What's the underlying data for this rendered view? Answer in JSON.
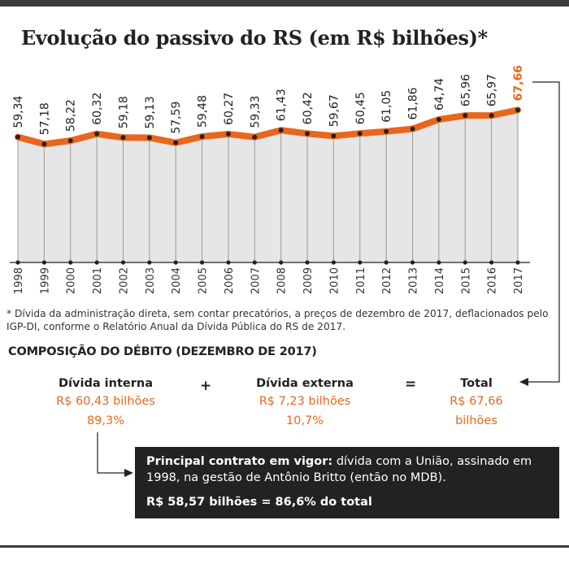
{
  "title": "Evolução do passivo do RS (em R$ bilhões)*",
  "chart_data": {
    "type": "area",
    "title": "Evolução do passivo do RS (em R$ bilhões)*",
    "x": [
      "1998",
      "1999",
      "2000",
      "2001",
      "2002",
      "2003",
      "2004",
      "2005",
      "2006",
      "2007",
      "2008",
      "2009",
      "2010",
      "2011",
      "2012",
      "2013",
      "2014",
      "2015",
      "2016",
      "2017"
    ],
    "values": [
      59.34,
      57.18,
      58.22,
      60.32,
      59.18,
      59.13,
      57.59,
      59.48,
      60.27,
      59.33,
      61.43,
      60.42,
      59.67,
      60.45,
      61.05,
      61.86,
      64.74,
      65.96,
      65.97,
      67.66
    ],
    "value_labels": [
      "59,34",
      "57,18",
      "58,22",
      "60,32",
      "59,18",
      "59,13",
      "57,59",
      "59,48",
      "60,27",
      "59,33",
      "61,43",
      "60,42",
      "59,67",
      "60,45",
      "61,05",
      "61,86",
      "64,74",
      "65,96",
      "65,97",
      "67,66"
    ],
    "highlight_last": true,
    "colors": {
      "line": "#e8671c",
      "area": "#e6e6e6",
      "highlight": "#e8671c",
      "marker": "#222222"
    }
  },
  "footnote": "* Dívida da administração direta, sem contar precatórios, a preços de dezembro de 2017, deflacionados pelo IGP-DI, conforme o Relatório Anual da Dívida Pública do RS de 2017.",
  "composition": {
    "title": "COMPOSIÇÃO DO DÉBITO (DEZEMBRO DE 2017)",
    "internal": {
      "label": "Dívida interna",
      "value": "R$ 60,43 bilhões",
      "share": "89,3%"
    },
    "plus": "+",
    "external": {
      "label": "Dívida externa",
      "value": "R$ 7,23 bilhões",
      "share": "10,7%"
    },
    "equals": "=",
    "total": {
      "label": "Total",
      "value_line1": "R$ 67,66",
      "value_line2": "bilhões"
    }
  },
  "contract": {
    "lead": "Principal contrato em vigor:",
    "text": " dívida com a União, assinado em 1998, na gestão de Antônio Britto (então no MDB).",
    "amount": "R$ 58,57 bilhões = 86,6% do total"
  }
}
